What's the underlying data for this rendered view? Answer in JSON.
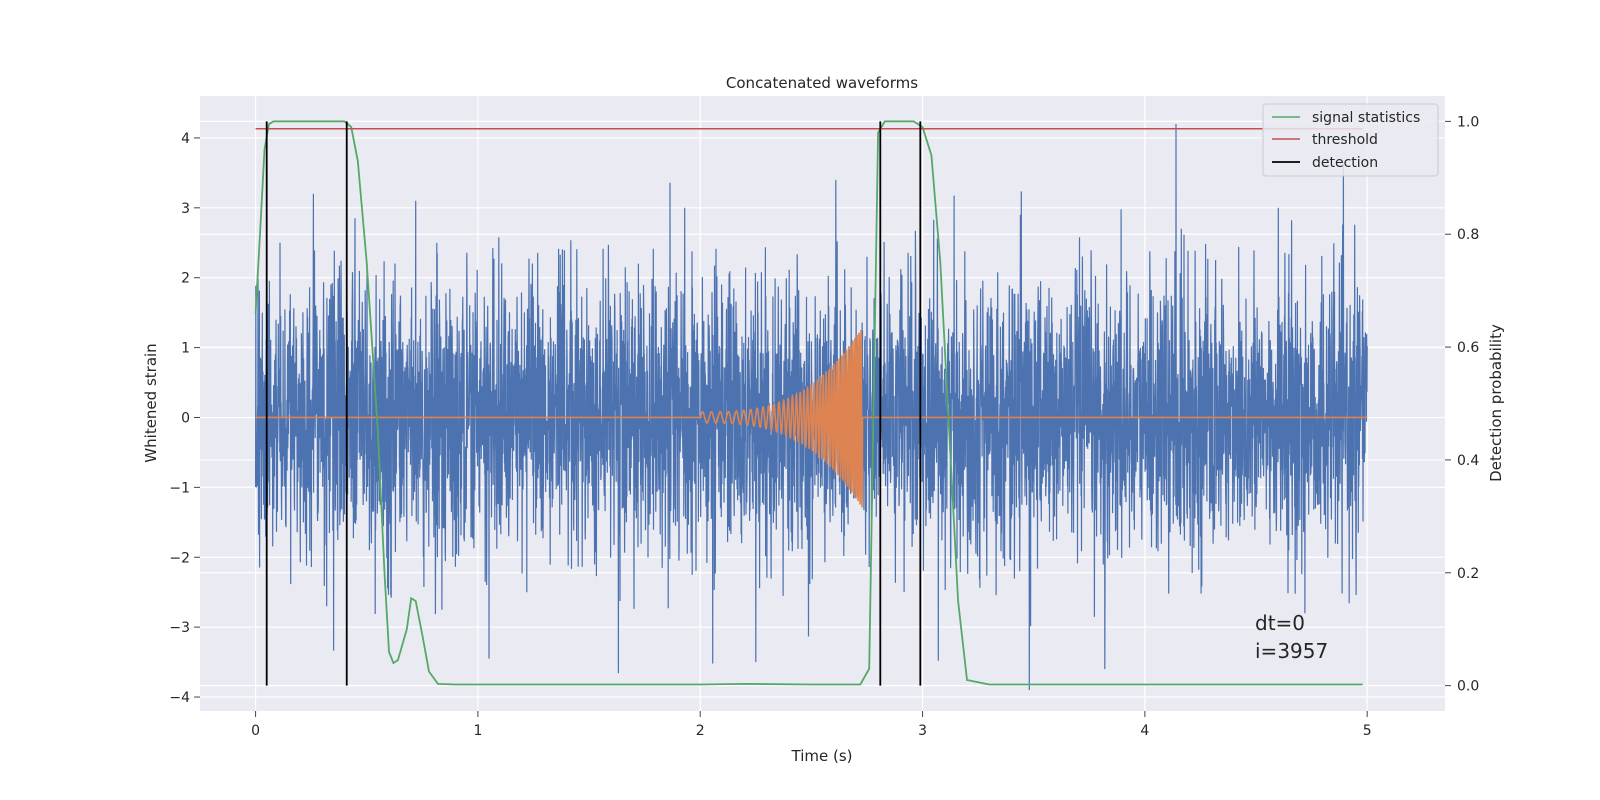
{
  "chart_data": {
    "type": "line",
    "title": "Concatenated waveforms",
    "xlabel": "Time (s)",
    "ylabel": "Whitened strain",
    "y2label": "Detection probability",
    "xlim": [
      -0.25,
      5.35
    ],
    "ylim": [
      -4.2,
      4.6
    ],
    "y2lim": [
      -0.045,
      1.045
    ],
    "x_ticks": [
      "0",
      "1",
      "2",
      "3",
      "4",
      "5"
    ],
    "y_ticks": [
      "4",
      "3",
      "2",
      "1",
      "0",
      "−1",
      "−2",
      "−3",
      "−4"
    ],
    "y2_ticks": [
      "1.0",
      "0.8",
      "0.6",
      "0.4",
      "0.2",
      "0.0"
    ],
    "grid": true,
    "legend_position": "top-right",
    "legend": [
      "signal statistics",
      "threshold",
      "detection"
    ],
    "colors": {
      "noise": "#4c72b0",
      "template": "#dd8452",
      "signal_statistics": "#55a868",
      "threshold": "#c44e52",
      "detection": "#000000",
      "background": "#eaeaf2",
      "grid": "#ffffff"
    },
    "series": [
      {
        "name": "",
        "axis": "left",
        "description_values": {
          "x_range": [
            0,
            5
          ],
          "envelope_typical": 1.9,
          "peaks": [
            [
              0.03,
              1.5
            ],
            [
              0.11,
              2.5
            ],
            [
              0.26,
              3.2
            ],
            [
              0.72,
              3.1
            ],
            [
              1.93,
              3.0
            ],
            [
              2.61,
              3.4
            ],
            [
              3.44,
              2.9
            ],
            [
              4.14,
              4.2
            ],
            [
              4.6,
              3.0
            ]
          ],
          "troughs": [
            [
              0.32,
              -2.7
            ],
            [
              1.05,
              -3.45
            ],
            [
              2.25,
              -3.5
            ],
            [
              3.48,
              -3.9
            ],
            [
              3.82,
              -3.6
            ],
            [
              4.72,
              -2.8
            ]
          ]
        }
      },
      {
        "name": "",
        "axis": "left",
        "x": [
          0,
          2,
          2.72,
          2.78,
          5
        ],
        "values": [
          0,
          0,
          0,
          0,
          0
        ],
        "chirp": {
          "start": 2.0,
          "end": 2.73,
          "amp_start": 0.08,
          "amp_end": 1.3
        }
      },
      {
        "name": "signal statistics",
        "axis": "right",
        "x": [
          0.0,
          0.02,
          0.04,
          0.06,
          0.08,
          0.12,
          0.2,
          0.3,
          0.4,
          0.43,
          0.46,
          0.5,
          0.55,
          0.58,
          0.6,
          0.62,
          0.64,
          0.68,
          0.7,
          0.72,
          0.75,
          0.78,
          0.82,
          0.9,
          1.0,
          1.5,
          2.0,
          2.2,
          2.5,
          2.72,
          2.76,
          2.78,
          2.8,
          2.83,
          2.9,
          2.96,
          3.0,
          3.04,
          3.08,
          3.12,
          3.16,
          3.2,
          3.3,
          4.0,
          4.98
        ],
        "values": [
          0.66,
          0.8,
          0.95,
          0.995,
          1.0,
          1.0,
          1.0,
          1.0,
          1.0,
          0.99,
          0.93,
          0.75,
          0.45,
          0.2,
          0.06,
          0.04,
          0.045,
          0.1,
          0.155,
          0.15,
          0.09,
          0.025,
          0.003,
          0.002,
          0.002,
          0.002,
          0.002,
          0.003,
          0.002,
          0.002,
          0.03,
          0.5,
          0.98,
          1.0,
          1.0,
          1.0,
          0.99,
          0.94,
          0.75,
          0.45,
          0.15,
          0.01,
          0.002,
          0.002,
          0.002
        ]
      },
      {
        "name": "threshold",
        "axis": "right",
        "x": [
          0.0,
          4.98
        ],
        "values": [
          0.987,
          0.987
        ]
      },
      {
        "name": "detection",
        "axis": "right",
        "x": [
          0.05,
          0.41,
          2.81,
          2.99
        ],
        "values": [
          1.0,
          1.0,
          1.0,
          1.0
        ]
      }
    ],
    "annotations": [
      "dt=0",
      "i=3957"
    ]
  }
}
